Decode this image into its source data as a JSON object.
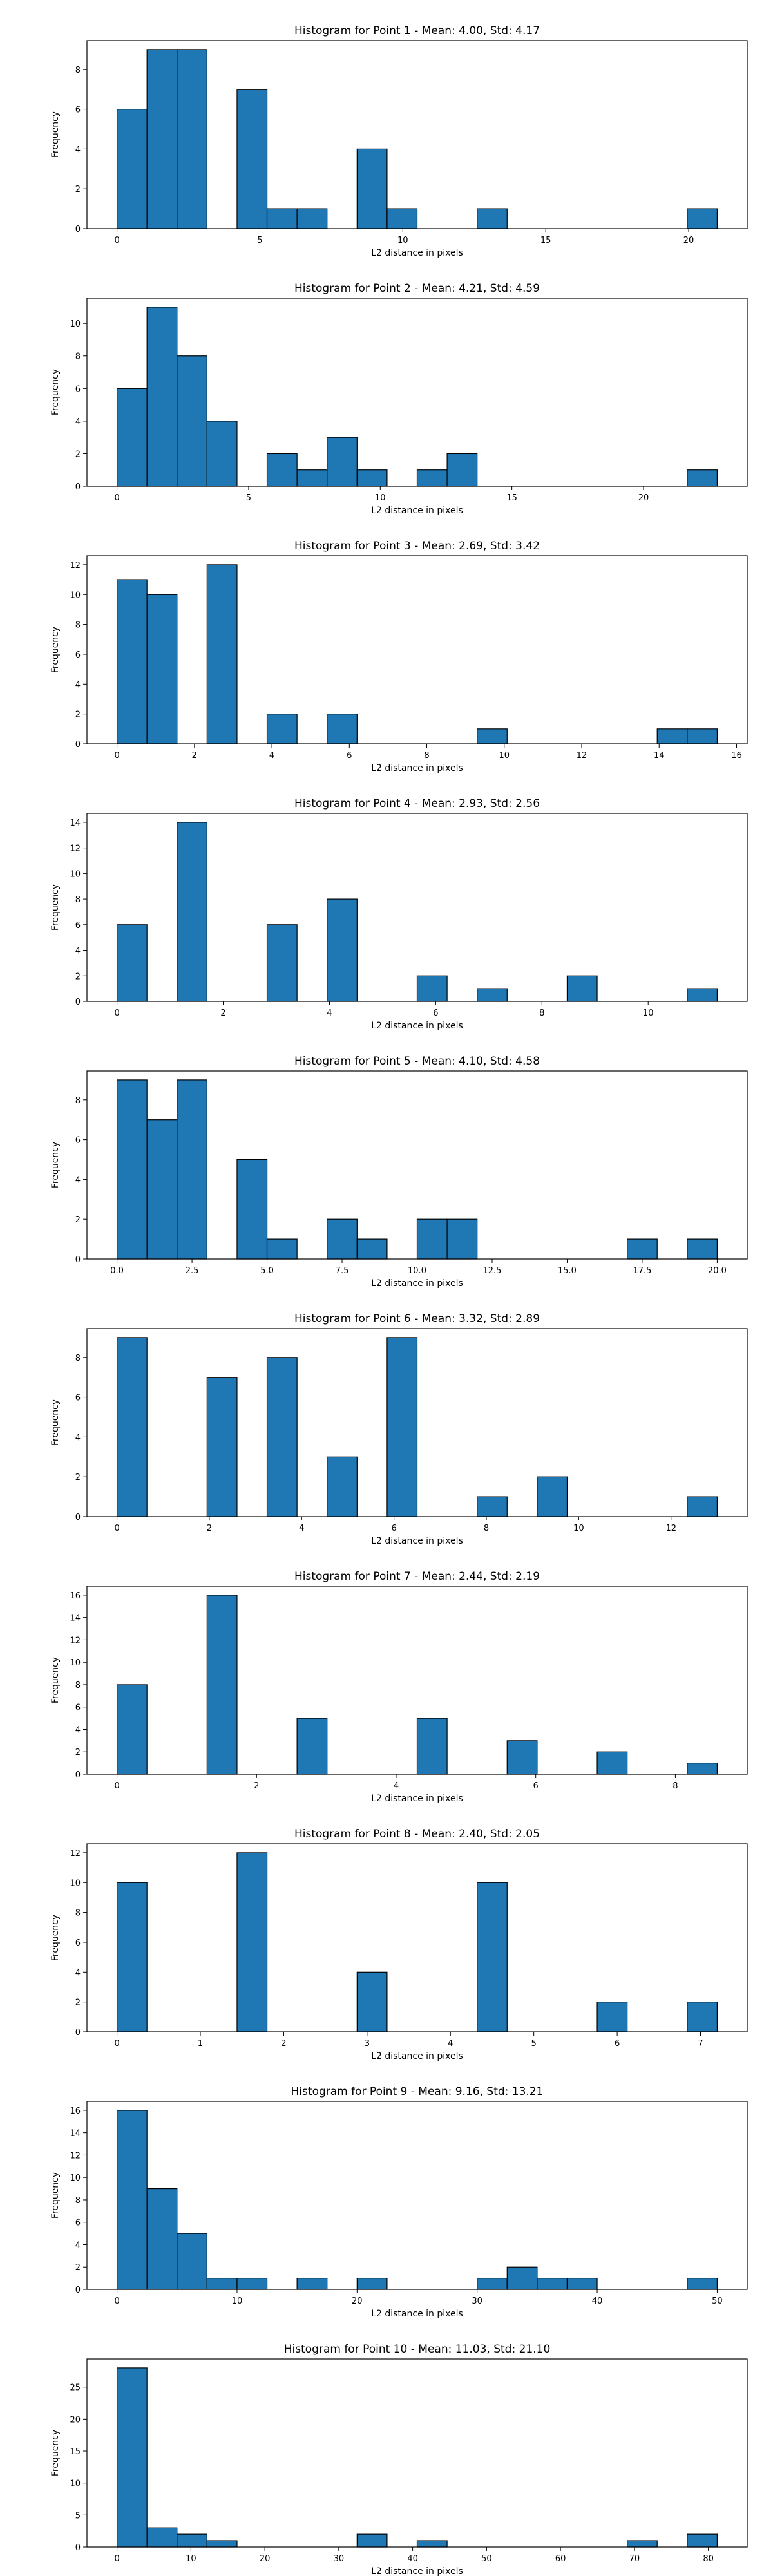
{
  "chart_data": [
    {
      "type": "bar",
      "title": "Histogram for Point 1 - Mean: 4.00, Std: 4.17",
      "xlabel": "L2 distance in pixels",
      "ylabel": "Frequency",
      "bin_edges": [
        0.0,
        1.05,
        2.1,
        3.15,
        4.2,
        5.25,
        6.3,
        7.35,
        8.4,
        9.45,
        10.5,
        11.55,
        12.6,
        13.65,
        14.7,
        15.75,
        16.8,
        17.85,
        18.9,
        19.95,
        21.0
      ],
      "values": [
        6,
        9,
        9,
        0,
        7,
        1,
        1,
        0,
        4,
        1,
        0,
        0,
        1,
        0,
        0,
        0,
        0,
        0,
        0,
        1
      ],
      "xlim": [
        -1.05,
        22.05
      ],
      "ylim": [
        0,
        9.45
      ],
      "xticks": [
        0,
        5,
        10,
        15,
        20
      ],
      "yticks": [
        0,
        2,
        4,
        6,
        8
      ],
      "xtick_labels": [
        "0",
        "5",
        "10",
        "15",
        "20"
      ],
      "ytick_labels": [
        "0",
        "2",
        "4",
        "6",
        "8"
      ],
      "grid": false,
      "bar_color": "#1f77b4",
      "edge_color": "#000000"
    },
    {
      "type": "bar",
      "title": "Histogram for Point 2 - Mean: 4.21, Std: 4.59",
      "xlabel": "L2 distance in pixels",
      "ylabel": "Frequency",
      "bin_edges": [
        0.0,
        1.14,
        2.28,
        3.42,
        4.56,
        5.7,
        6.84,
        7.98,
        9.12,
        10.26,
        11.4,
        12.54,
        13.68,
        14.82,
        15.96,
        17.1,
        18.24,
        19.38,
        20.52,
        21.66,
        22.8
      ],
      "values": [
        6,
        11,
        8,
        4,
        0,
        2,
        1,
        3,
        1,
        0,
        1,
        2,
        0,
        0,
        0,
        0,
        0,
        0,
        0,
        1
      ],
      "xlim": [
        -1.14,
        23.94
      ],
      "ylim": [
        0,
        11.55
      ],
      "xticks": [
        0,
        5,
        10,
        15,
        20
      ],
      "yticks": [
        0,
        2,
        4,
        6,
        8,
        10
      ],
      "xtick_labels": [
        "0",
        "5",
        "10",
        "15",
        "20"
      ],
      "ytick_labels": [
        "0",
        "2",
        "4",
        "6",
        "8",
        "10"
      ],
      "grid": false,
      "bar_color": "#1f77b4",
      "edge_color": "#000000"
    },
    {
      "type": "bar",
      "title": "Histogram for Point 3 - Mean: 2.69, Std: 3.42",
      "xlabel": "L2 distance in pixels",
      "ylabel": "Frequency",
      "bin_edges": [
        0.0,
        0.775,
        1.55,
        2.325,
        3.1,
        3.875,
        4.65,
        5.425,
        6.2,
        6.975,
        7.75,
        8.525,
        9.3,
        10.075,
        10.85,
        11.625,
        12.4,
        13.175,
        13.95,
        14.725,
        15.5
      ],
      "values": [
        11,
        10,
        0,
        12,
        0,
        2,
        0,
        2,
        0,
        0,
        0,
        0,
        1,
        0,
        0,
        0,
        0,
        0,
        1,
        1
      ],
      "xlim": [
        -0.775,
        16.275
      ],
      "ylim": [
        0,
        12.6
      ],
      "xticks": [
        0,
        2,
        4,
        6,
        8,
        10,
        12,
        14,
        16
      ],
      "yticks": [
        0,
        2,
        4,
        6,
        8,
        10,
        12
      ],
      "xtick_labels": [
        "0",
        "2",
        "4",
        "6",
        "8",
        "10",
        "12",
        "14",
        "16"
      ],
      "ytick_labels": [
        "0",
        "2",
        "4",
        "6",
        "8",
        "10",
        "12"
      ],
      "grid": false,
      "bar_color": "#1f77b4",
      "edge_color": "#000000"
    },
    {
      "type": "bar",
      "title": "Histogram for Point 4 - Mean: 2.93, Std: 2.56",
      "xlabel": "L2 distance in pixels",
      "ylabel": "Frequency",
      "bin_edges": [
        0.0,
        0.565,
        1.13,
        1.695,
        2.26,
        2.825,
        3.39,
        3.955,
        4.52,
        5.085,
        5.65,
        6.215,
        6.78,
        7.345,
        7.91,
        8.475,
        9.04,
        9.605,
        10.17,
        10.735,
        11.3
      ],
      "values": [
        6,
        0,
        14,
        0,
        0,
        6,
        0,
        8,
        0,
        0,
        2,
        0,
        1,
        0,
        0,
        2,
        0,
        0,
        0,
        1
      ],
      "xlim": [
        -0.565,
        11.865
      ],
      "ylim": [
        0,
        14.7
      ],
      "xticks": [
        0,
        2,
        4,
        6,
        8,
        10
      ],
      "yticks": [
        0,
        2,
        4,
        6,
        8,
        10,
        12,
        14
      ],
      "xtick_labels": [
        "0",
        "2",
        "4",
        "6",
        "8",
        "10"
      ],
      "ytick_labels": [
        "0",
        "2",
        "4",
        "6",
        "8",
        "10",
        "12",
        "14"
      ],
      "grid": false,
      "bar_color": "#1f77b4",
      "edge_color": "#000000"
    },
    {
      "type": "bar",
      "title": "Histogram for Point 5 - Mean: 4.10, Std: 4.58",
      "xlabel": "L2 distance in pixels",
      "ylabel": "Frequency",
      "bin_edges": [
        0.0,
        1.0,
        2.0,
        3.0,
        4.0,
        5.0,
        6.0,
        7.0,
        8.0,
        9.0,
        10.0,
        11.0,
        12.0,
        13.0,
        14.0,
        15.0,
        16.0,
        17.0,
        18.0,
        19.0,
        20.0
      ],
      "values": [
        9,
        7,
        9,
        0,
        5,
        1,
        0,
        2,
        1,
        0,
        2,
        2,
        0,
        0,
        0,
        0,
        0,
        1,
        0,
        1
      ],
      "xlim": [
        -1.0,
        21.0
      ],
      "ylim": [
        0,
        9.45
      ],
      "xticks": [
        0,
        2.5,
        5,
        7.5,
        10,
        12.5,
        15,
        17.5,
        20
      ],
      "yticks": [
        0,
        2,
        4,
        6,
        8
      ],
      "xtick_labels": [
        "0.0",
        "2.5",
        "5.0",
        "7.5",
        "10.0",
        "12.5",
        "15.0",
        "17.5",
        "20.0"
      ],
      "ytick_labels": [
        "0",
        "2",
        "4",
        "6",
        "8"
      ],
      "grid": false,
      "bar_color": "#1f77b4",
      "edge_color": "#000000"
    },
    {
      "type": "bar",
      "title": "Histogram for Point 6 - Mean: 3.32, Std: 2.89",
      "xlabel": "L2 distance in pixels",
      "ylabel": "Frequency",
      "bin_edges": [
        0.0,
        0.65,
        1.3,
        1.95,
        2.6,
        3.25,
        3.9,
        4.55,
        5.2,
        5.85,
        6.5,
        7.15,
        7.8,
        8.45,
        9.1,
        9.75,
        10.4,
        11.05,
        11.7,
        12.35,
        13.0
      ],
      "values": [
        9,
        0,
        0,
        7,
        0,
        8,
        0,
        3,
        0,
        9,
        0,
        0,
        1,
        0,
        2,
        0,
        0,
        0,
        0,
        1
      ],
      "xlim": [
        -0.65,
        13.65
      ],
      "ylim": [
        0,
        9.45
      ],
      "xticks": [
        0,
        2,
        4,
        6,
        8,
        10,
        12
      ],
      "yticks": [
        0,
        2,
        4,
        6,
        8
      ],
      "xtick_labels": [
        "0",
        "2",
        "4",
        "6",
        "8",
        "10",
        "12"
      ],
      "ytick_labels": [
        "0",
        "2",
        "4",
        "6",
        "8"
      ],
      "grid": false,
      "bar_color": "#1f77b4",
      "edge_color": "#000000"
    },
    {
      "type": "bar",
      "title": "Histogram for Point 7 - Mean: 2.44, Std: 2.19",
      "xlabel": "L2 distance in pixels",
      "ylabel": "Frequency",
      "bin_edges": [
        0.0,
        0.43,
        0.86,
        1.29,
        1.72,
        2.15,
        2.58,
        3.01,
        3.44,
        3.87,
        4.3,
        4.73,
        5.16,
        5.59,
        6.02,
        6.45,
        6.88,
        7.31,
        7.74,
        8.17,
        8.6
      ],
      "values": [
        8,
        0,
        0,
        16,
        0,
        0,
        5,
        0,
        0,
        0,
        5,
        0,
        0,
        3,
        0,
        0,
        2,
        0,
        0,
        1
      ],
      "xlim": [
        -0.43,
        9.03
      ],
      "ylim": [
        0,
        16.8
      ],
      "xticks": [
        0,
        2,
        4,
        6,
        8
      ],
      "yticks": [
        0,
        2,
        4,
        6,
        8,
        10,
        12,
        14,
        16
      ],
      "xtick_labels": [
        "0",
        "2",
        "4",
        "6",
        "8"
      ],
      "ytick_labels": [
        "0",
        "2",
        "4",
        "6",
        "8",
        "10",
        "12",
        "14",
        "16"
      ],
      "grid": false,
      "bar_color": "#1f77b4",
      "edge_color": "#000000"
    },
    {
      "type": "bar",
      "title": "Histogram for Point 8 - Mean: 2.40, Std: 2.05",
      "xlabel": "L2 distance in pixels",
      "ylabel": "Frequency",
      "bin_edges": [
        0.0,
        0.36,
        0.72,
        1.08,
        1.44,
        1.8,
        2.16,
        2.52,
        2.88,
        3.24,
        3.6,
        3.96,
        4.32,
        4.68,
        5.04,
        5.4,
        5.76,
        6.12,
        6.48,
        6.84,
        7.2
      ],
      "values": [
        10,
        0,
        0,
        0,
        12,
        0,
        0,
        0,
        4,
        0,
        0,
        0,
        10,
        0,
        0,
        0,
        2,
        0,
        0,
        2
      ],
      "xlim": [
        -0.36,
        7.56
      ],
      "ylim": [
        0,
        12.6
      ],
      "xticks": [
        0,
        1,
        2,
        3,
        4,
        5,
        6,
        7
      ],
      "yticks": [
        0,
        2,
        4,
        6,
        8,
        10,
        12
      ],
      "xtick_labels": [
        "0",
        "1",
        "2",
        "3",
        "4",
        "5",
        "6",
        "7"
      ],
      "ytick_labels": [
        "0",
        "2",
        "4",
        "6",
        "8",
        "10",
        "12"
      ],
      "grid": false,
      "bar_color": "#1f77b4",
      "edge_color": "#000000"
    },
    {
      "type": "bar",
      "title": "Histogram for Point 9 - Mean: 9.16, Std: 13.21",
      "xlabel": "L2 distance in pixels",
      "ylabel": "Frequency",
      "bin_edges": [
        0.0,
        2.5,
        5.0,
        7.5,
        10.0,
        12.5,
        15.0,
        17.5,
        20.0,
        22.5,
        25.0,
        27.5,
        30.0,
        32.5,
        35.0,
        37.5,
        40.0,
        42.5,
        45.0,
        47.5,
        50.0
      ],
      "values": [
        16,
        9,
        5,
        1,
        1,
        0,
        1,
        0,
        1,
        0,
        0,
        0,
        1,
        2,
        1,
        1,
        0,
        0,
        0,
        1
      ],
      "xlim": [
        -2.5,
        52.5
      ],
      "ylim": [
        0,
        16.8
      ],
      "xticks": [
        0,
        10,
        20,
        30,
        40,
        50
      ],
      "yticks": [
        0,
        2,
        4,
        6,
        8,
        10,
        12,
        14,
        16
      ],
      "xtick_labels": [
        "0",
        "10",
        "20",
        "30",
        "40",
        "50"
      ],
      "ytick_labels": [
        "0",
        "2",
        "4",
        "6",
        "8",
        "10",
        "12",
        "14",
        "16"
      ],
      "grid": false,
      "bar_color": "#1f77b4",
      "edge_color": "#000000"
    },
    {
      "type": "bar",
      "title": "Histogram for Point 10 - Mean: 11.03, Std: 21.10",
      "xlabel": "L2 distance in pixels",
      "ylabel": "Frequency",
      "bin_edges": [
        0.0,
        4.06,
        8.12,
        12.18,
        16.24,
        20.3,
        24.36,
        28.42,
        32.48,
        36.54,
        40.6,
        44.66,
        48.72,
        52.78,
        56.84,
        60.9,
        64.96,
        69.02,
        73.08,
        77.14,
        81.2
      ],
      "values": [
        28,
        3,
        2,
        1,
        0,
        0,
        0,
        0,
        2,
        0,
        1,
        0,
        0,
        0,
        0,
        0,
        0,
        1,
        0,
        2
      ],
      "xlim": [
        -4.06,
        85.26
      ],
      "ylim": [
        0,
        29.4
      ],
      "xticks": [
        0,
        10,
        20,
        30,
        40,
        50,
        60,
        70,
        80
      ],
      "yticks": [
        0,
        5,
        10,
        15,
        20,
        25
      ],
      "xtick_labels": [
        "0",
        "10",
        "20",
        "30",
        "40",
        "50",
        "60",
        "70",
        "80"
      ],
      "ytick_labels": [
        "0",
        "5",
        "10",
        "15",
        "20",
        "25"
      ],
      "grid": false,
      "bar_color": "#1f77b4",
      "edge_color": "#000000"
    }
  ]
}
